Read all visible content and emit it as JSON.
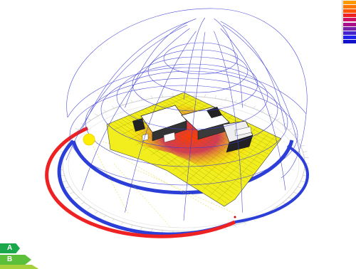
{
  "legend": {
    "items": [
      {
        "label": "",
        "color": "#ff9900"
      },
      {
        "label": "",
        "color": "#ff7700"
      },
      {
        "label": "",
        "color": "#ff5500"
      },
      {
        "label": "",
        "color": "#ee2222"
      },
      {
        "label": "",
        "color": "#cc1166"
      },
      {
        "label": "",
        "color": "#aa1188"
      },
      {
        "label": "",
        "color": "#7722aa"
      },
      {
        "label": "",
        "color": "#4422cc"
      },
      {
        "label": "",
        "color": "#2222ee"
      },
      {
        "label": "",
        "color": "#1111cc"
      }
    ]
  },
  "energy_badge": {
    "classes": [
      {
        "letter": "A",
        "color": "#1aa84b"
      },
      {
        "letter": "B",
        "color": "#5cbf3a"
      },
      {
        "letter": "",
        "color": "#a6d13a"
      }
    ]
  },
  "colors": {
    "dome": "#3b3bd6",
    "ground_plane": "#f2ee1e",
    "sun": "#ffee00",
    "summer_arc": "#ee2222",
    "winter_arc": "#2b3fd8"
  },
  "icons": {
    "sun": "sun-icon"
  }
}
